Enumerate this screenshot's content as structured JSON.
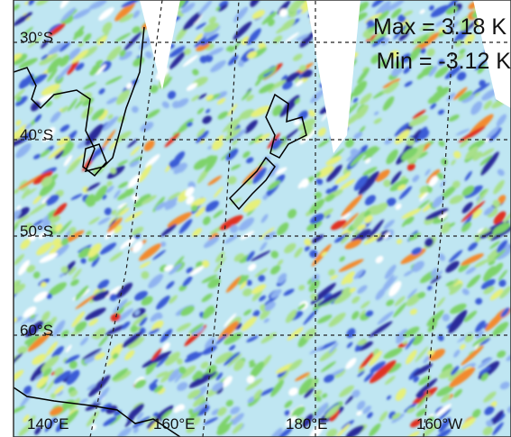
{
  "map": {
    "lat_labels": [
      "30°S",
      "40°S",
      "50°S",
      "60°S"
    ],
    "lon_labels": [
      "140°E",
      "160°E",
      "180°E",
      "160°W"
    ],
    "annotations": {
      "max": "Max = 3.18 K",
      "min": "Min = -3.12 K"
    }
  }
}
